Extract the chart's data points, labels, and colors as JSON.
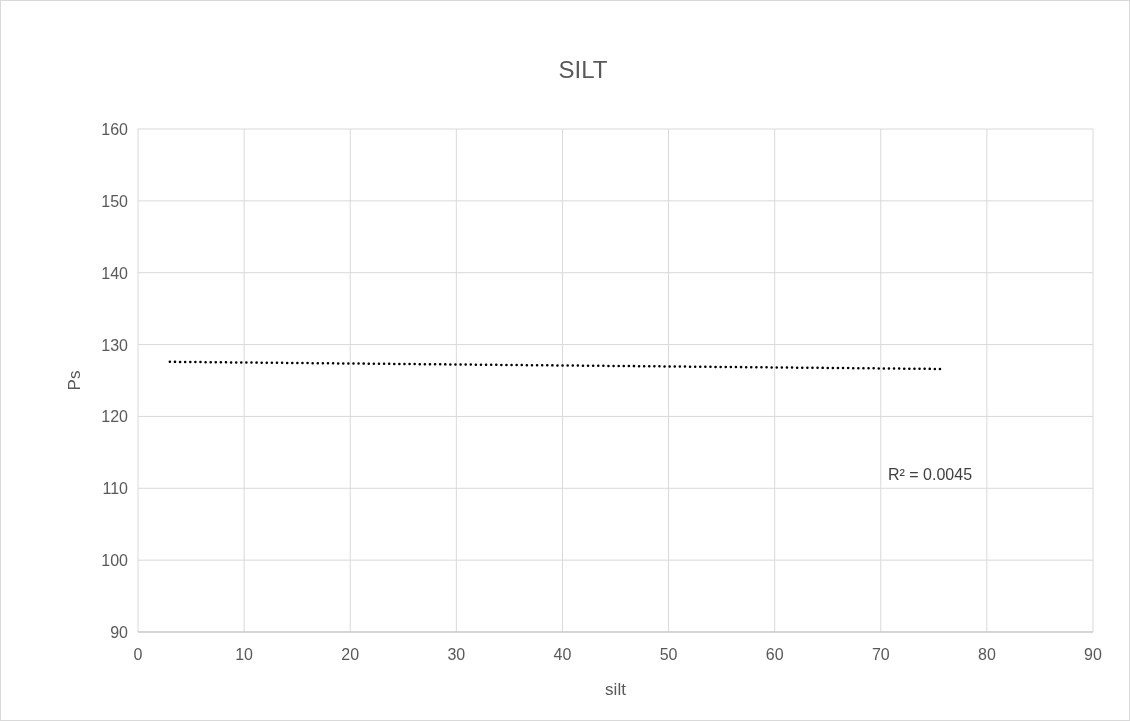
{
  "chart_data": {
    "type": "line",
    "title": "SILT",
    "xlabel": "silt",
    "ylabel": "Ps",
    "xlim": [
      0,
      90
    ],
    "xticks": [
      0,
      10,
      20,
      30,
      40,
      50,
      60,
      70,
      80,
      90
    ],
    "ylim": [
      90,
      160
    ],
    "yticks": [
      90,
      100,
      110,
      120,
      130,
      140,
      150,
      160
    ],
    "grid": true,
    "marker": "none",
    "line_style": "dotted",
    "series": [
      {
        "color": "#000000",
        "x": [
          3,
          76
        ],
        "values": [
          127.6,
          126.6
        ]
      }
    ],
    "annotations": [
      "R² = 0.0045"
    ]
  }
}
